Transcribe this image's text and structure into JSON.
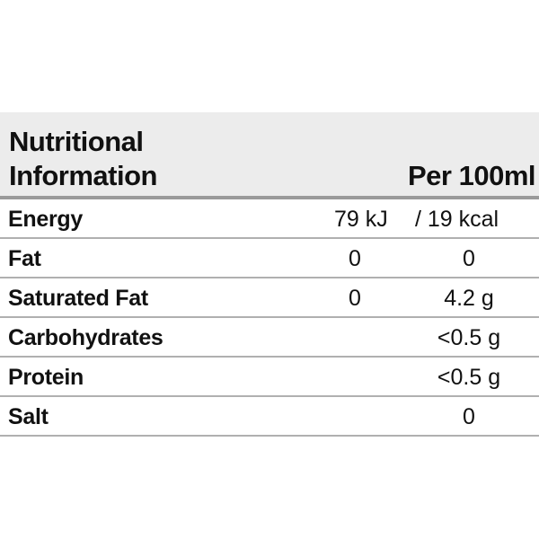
{
  "header": {
    "title_line1": "Nutritional",
    "title_line2": "Information",
    "per": "Per 100ml"
  },
  "rows": [
    {
      "label": "Energy",
      "col1": "79 kJ",
      "col2": "/ 19 kcal"
    },
    {
      "label": "Fat",
      "col1": "0",
      "col2": "0"
    },
    {
      "label": "Saturated Fat",
      "col1": "0",
      "col2": "4.2 g"
    },
    {
      "label": "Carbohydrates",
      "col1": "",
      "col2": "<0.5 g"
    },
    {
      "label": "Protein",
      "col1": "",
      "col2": "<0.5 g"
    },
    {
      "label": "Salt",
      "col1": "",
      "col2": "0"
    }
  ],
  "colors": {
    "header_bg": "#ececec",
    "divider": "#b0b0b0"
  }
}
